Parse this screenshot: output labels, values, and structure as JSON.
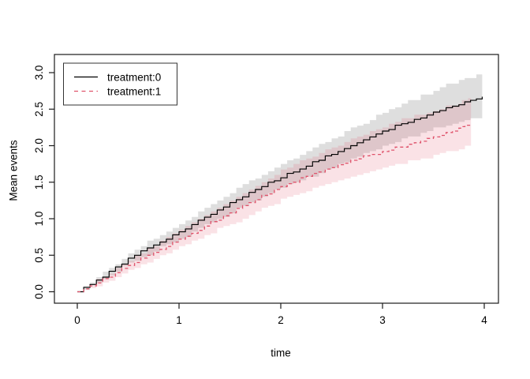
{
  "chart_data": {
    "type": "line",
    "title": "",
    "xlabel": "time",
    "ylabel": "Mean events",
    "xlim": [
      0,
      4
    ],
    "ylim": [
      0,
      3
    ],
    "x_ticks": [
      "0",
      "1",
      "2",
      "3",
      "4"
    ],
    "x_tick_values": [
      0,
      1,
      2,
      3,
      4
    ],
    "y_ticks": [
      "0.0",
      "0.5",
      "1.0",
      "1.5",
      "2.0",
      "2.5",
      "3.0"
    ],
    "y_tick_values": [
      0,
      0.5,
      1,
      1.5,
      2,
      2.5,
      3
    ],
    "grid": false,
    "legend": {
      "position": "top-left",
      "border": true
    },
    "series": [
      {
        "name": "treatment:0",
        "color": "#000000",
        "line_style": "solid",
        "band_color": "rgba(0,0,0,0.13)",
        "x": [
          0,
          0.25,
          0.5,
          0.75,
          1.0,
          1.25,
          1.5,
          1.75,
          2.0,
          2.25,
          2.5,
          2.75,
          3.0,
          3.25,
          3.5,
          3.75,
          3.98
        ],
        "y": [
          0,
          0.21,
          0.45,
          0.64,
          0.82,
          1.02,
          1.22,
          1.4,
          1.57,
          1.73,
          1.88,
          2.04,
          2.2,
          2.33,
          2.46,
          2.57,
          2.67
        ],
        "upper": [
          0,
          0.26,
          0.52,
          0.73,
          0.93,
          1.15,
          1.36,
          1.56,
          1.75,
          1.93,
          2.1,
          2.28,
          2.46,
          2.61,
          2.76,
          2.89,
          3.01
        ],
        "lower": [
          0,
          0.17,
          0.39,
          0.56,
          0.72,
          0.91,
          1.09,
          1.26,
          1.42,
          1.56,
          1.7,
          1.85,
          2.0,
          2.11,
          2.23,
          2.33,
          2.4
        ]
      },
      {
        "name": "treatment:1",
        "color": "#DF536B",
        "line_style": "dashed",
        "band_color": "rgba(223,83,107,0.17)",
        "x": [
          0,
          0.25,
          0.5,
          0.75,
          1.0,
          1.25,
          1.5,
          1.75,
          2.0,
          2.25,
          2.5,
          2.75,
          3.0,
          3.25,
          3.5,
          3.75,
          3.87
        ],
        "y": [
          0,
          0.17,
          0.35,
          0.54,
          0.72,
          0.9,
          1.08,
          1.26,
          1.45,
          1.58,
          1.7,
          1.82,
          1.92,
          2.02,
          2.12,
          2.24,
          2.3
        ],
        "upper": [
          0,
          0.22,
          0.43,
          0.64,
          0.84,
          1.05,
          1.25,
          1.46,
          1.66,
          1.83,
          1.99,
          2.13,
          2.27,
          2.38,
          2.49,
          2.6,
          2.66
        ],
        "lower": [
          0,
          0.13,
          0.28,
          0.45,
          0.61,
          0.77,
          0.93,
          1.09,
          1.26,
          1.38,
          1.5,
          1.6,
          1.7,
          1.78,
          1.86,
          1.96,
          2.0
        ]
      }
    ]
  }
}
